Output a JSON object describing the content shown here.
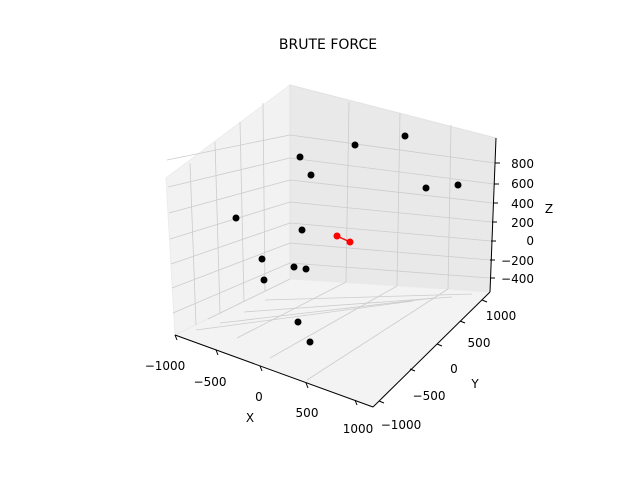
{
  "chart_data": {
    "type": "scatter",
    "title": "BRUTE FORCE",
    "xlabel": "X",
    "ylabel": "Y",
    "zlabel": "Z",
    "xlim": [
      -1000,
      1000
    ],
    "ylim": [
      -1000,
      1000
    ],
    "zlim": [
      -500,
      900
    ],
    "x_ticks": [
      "-1000",
      "-500",
      "0",
      "500",
      "1000"
    ],
    "y_ticks": [
      "-1000",
      "-500",
      "0",
      "500",
      "1000"
    ],
    "z_ticks": [
      "-400",
      "-200",
      "0",
      "200",
      "400",
      "600",
      "800"
    ],
    "grid": true,
    "colors": {
      "points": "#000000",
      "closest_pair": "#ff0000",
      "pane": "#f2f2f2",
      "grid": "#cccccc"
    }
  }
}
